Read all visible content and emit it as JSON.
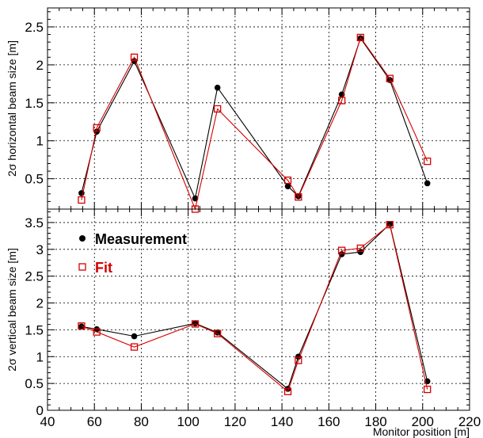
{
  "chart_data": [
    {
      "type": "line",
      "ylabel": "2σ horizontal beam size [m]",
      "xlim": [
        40,
        220
      ],
      "ylim": [
        0.1,
        2.75
      ],
      "grid": true,
      "yticks": [
        0.5,
        1,
        1.5,
        2,
        2.5
      ],
      "series": [
        {
          "name": "Measurement",
          "color": "#000000",
          "marker": "filled-circle",
          "x": [
            54.5,
            61,
            77,
            103,
            112.5,
            142.5,
            147,
            165.5,
            173.5,
            186,
            202
          ],
          "y": [
            0.31,
            1.12,
            2.05,
            0.24,
            1.7,
            0.4,
            0.27,
            1.61,
            2.35,
            1.8,
            0.44
          ]
        },
        {
          "name": "Fit",
          "color": "#d40000",
          "marker": "open-square",
          "x": [
            54.5,
            61,
            77,
            103,
            112.5,
            142.5,
            147,
            165.5,
            173.5,
            186,
            202
          ],
          "y": [
            0.22,
            1.17,
            2.1,
            0.1,
            1.42,
            0.48,
            0.26,
            1.53,
            2.36,
            1.82,
            0.73
          ]
        }
      ]
    },
    {
      "type": "line",
      "xlabel": "Monitor position [m]",
      "ylabel": "2σ vertical beam size [m]",
      "xlim": [
        40,
        220
      ],
      "ylim": [
        0,
        3.75
      ],
      "grid": true,
      "xticks": [
        40,
        60,
        80,
        100,
        120,
        140,
        160,
        180,
        200,
        220
      ],
      "yticks": [
        0,
        0.5,
        1,
        1.5,
        2,
        2.5,
        3,
        3.5
      ],
      "legend": "top-left",
      "series": [
        {
          "name": "Measurement",
          "color": "#000000",
          "marker": "filled-circle",
          "x": [
            54.5,
            61,
            77,
            103,
            112.5,
            142.5,
            147,
            165.5,
            173.5,
            186,
            202
          ],
          "y": [
            1.56,
            1.51,
            1.38,
            1.62,
            1.45,
            0.4,
            1.0,
            2.91,
            2.95,
            3.47,
            0.54
          ]
        },
        {
          "name": "Fit",
          "color": "#d40000",
          "marker": "open-square",
          "x": [
            54.5,
            61,
            77,
            103,
            112.5,
            142.5,
            147,
            165.5,
            173.5,
            186,
            202
          ],
          "y": [
            1.57,
            1.46,
            1.18,
            1.61,
            1.43,
            0.35,
            0.93,
            2.98,
            3.02,
            3.46,
            0.39
          ]
        }
      ]
    }
  ]
}
